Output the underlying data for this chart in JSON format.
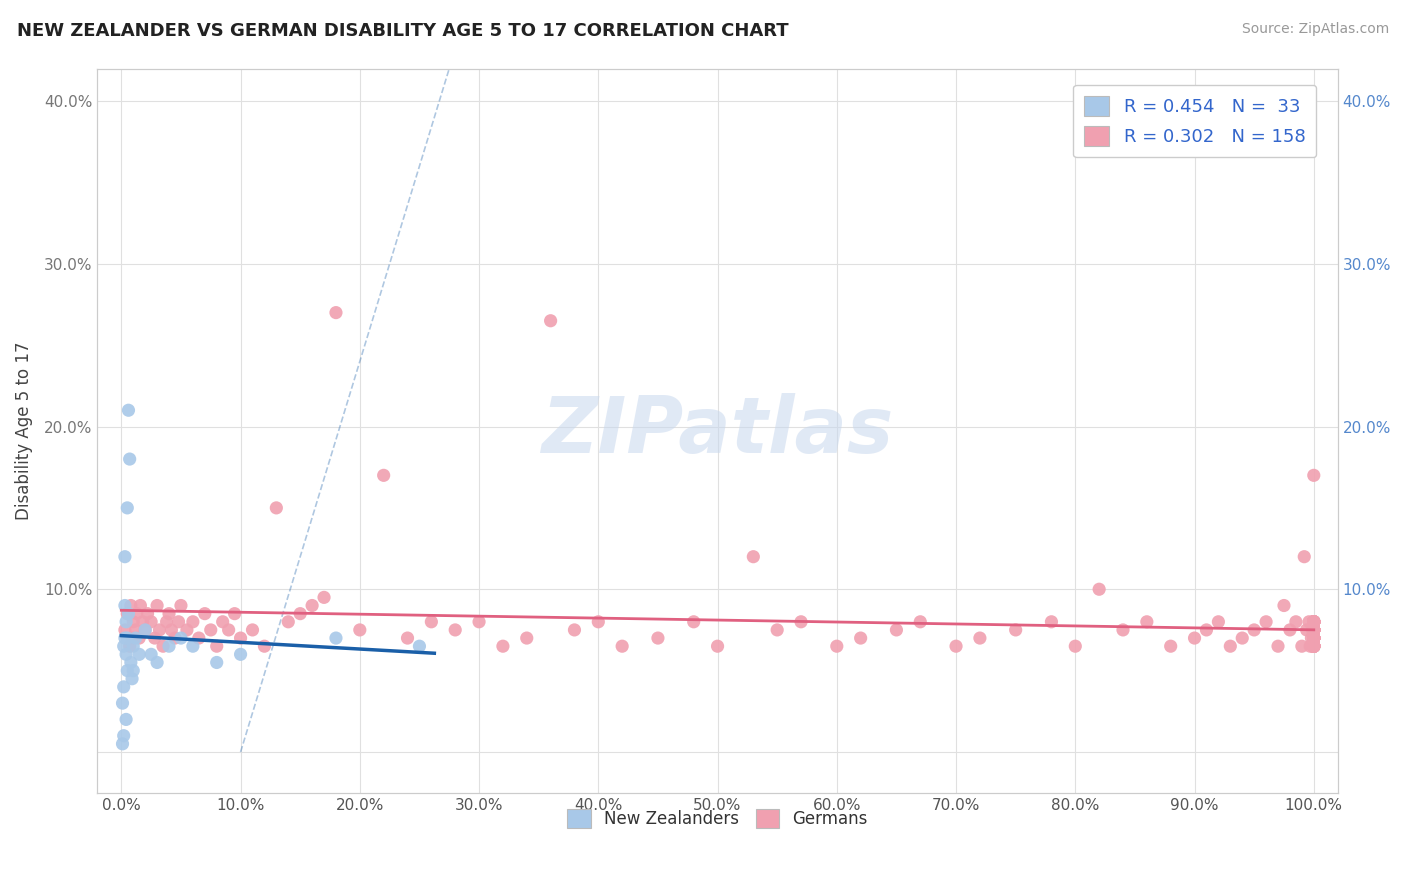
{
  "title": "NEW ZEALANDER VS GERMAN DISABILITY AGE 5 TO 17 CORRELATION CHART",
  "source": "Source: ZipAtlas.com",
  "ylabel": "Disability Age 5 to 17",
  "xlim": [
    -0.02,
    1.02
  ],
  "ylim": [
    -0.025,
    0.42
  ],
  "xticks": [
    0.0,
    0.1,
    0.2,
    0.3,
    0.4,
    0.5,
    0.6,
    0.7,
    0.8,
    0.9,
    1.0
  ],
  "xticklabels": [
    "0.0%",
    "10.0%",
    "20.0%",
    "30.0%",
    "40.0%",
    "50.0%",
    "60.0%",
    "70.0%",
    "80.0%",
    "90.0%",
    "100.0%"
  ],
  "yticks": [
    0.0,
    0.1,
    0.2,
    0.3,
    0.4
  ],
  "yticklabels": [
    "",
    "10.0%",
    "20.0%",
    "30.0%",
    "40.0%"
  ],
  "right_yticklabels": [
    "",
    "10.0%",
    "20.0%",
    "30.0%",
    "40.0%"
  ],
  "legend_R1": "0.454",
  "legend_N1": "33",
  "legend_R2": "0.302",
  "legend_N2": "158",
  "blue_scatter_color": "#a8c8e8",
  "blue_line_color": "#1a5fa8",
  "pink_scatter_color": "#f0a0b0",
  "pink_line_color": "#e06080",
  "legend_text_color": "#3366cc",
  "nz_x": [
    0.001,
    0.001,
    0.002,
    0.002,
    0.002,
    0.003,
    0.003,
    0.003,
    0.004,
    0.004,
    0.004,
    0.005,
    0.005,
    0.005,
    0.006,
    0.006,
    0.007,
    0.008,
    0.009,
    0.01,
    0.01,
    0.012,
    0.015,
    0.02,
    0.025,
    0.03,
    0.04,
    0.05,
    0.06,
    0.08,
    0.1,
    0.18,
    0.25
  ],
  "nz_y": [
    0.005,
    0.03,
    0.01,
    0.04,
    0.065,
    0.07,
    0.09,
    0.12,
    0.02,
    0.06,
    0.08,
    0.05,
    0.07,
    0.15,
    0.085,
    0.21,
    0.18,
    0.055,
    0.045,
    0.05,
    0.065,
    0.07,
    0.06,
    0.075,
    0.06,
    0.055,
    0.065,
    0.07,
    0.065,
    0.055,
    0.06,
    0.07,
    0.065
  ],
  "de_x": [
    0.003,
    0.005,
    0.007,
    0.008,
    0.009,
    0.01,
    0.012,
    0.013,
    0.015,
    0.016,
    0.018,
    0.02,
    0.022,
    0.025,
    0.028,
    0.03,
    0.032,
    0.035,
    0.038,
    0.04,
    0.042,
    0.045,
    0.048,
    0.05,
    0.055,
    0.06,
    0.065,
    0.07,
    0.075,
    0.08,
    0.085,
    0.09,
    0.095,
    0.1,
    0.11,
    0.12,
    0.13,
    0.14,
    0.15,
    0.16,
    0.17,
    0.18,
    0.2,
    0.22,
    0.24,
    0.26,
    0.28,
    0.3,
    0.32,
    0.34,
    0.36,
    0.38,
    0.4,
    0.42,
    0.45,
    0.48,
    0.5,
    0.53,
    0.55,
    0.57,
    0.6,
    0.62,
    0.65,
    0.67,
    0.7,
    0.72,
    0.75,
    0.78,
    0.8,
    0.82,
    0.84,
    0.86,
    0.88,
    0.9,
    0.91,
    0.92,
    0.93,
    0.94,
    0.95,
    0.96,
    0.97,
    0.975,
    0.98,
    0.985,
    0.99,
    0.992,
    0.994,
    0.996,
    0.997,
    0.998,
    0.999,
    1.0,
    1.0,
    1.0,
    1.0,
    1.0,
    1.0,
    1.0,
    1.0,
    1.0,
    1.0,
    1.0,
    1.0,
    1.0,
    1.0,
    1.0,
    1.0,
    1.0,
    1.0,
    1.0,
    1.0,
    1.0,
    1.0,
    1.0,
    1.0,
    1.0,
    1.0,
    1.0,
    1.0,
    1.0,
    1.0,
    1.0,
    1.0,
    1.0,
    1.0,
    1.0,
    1.0,
    1.0,
    1.0,
    1.0,
    1.0,
    1.0,
    1.0,
    1.0,
    1.0,
    1.0,
    1.0,
    1.0,
    1.0,
    1.0,
    1.0,
    1.0,
    1.0,
    1.0,
    1.0,
    1.0,
    1.0,
    1.0,
    1.0,
    1.0,
    1.0,
    1.0,
    1.0,
    1.0,
    1.0,
    1.0,
    1.0
  ],
  "de_y": [
    0.075,
    0.085,
    0.065,
    0.09,
    0.07,
    0.08,
    0.075,
    0.085,
    0.07,
    0.09,
    0.08,
    0.075,
    0.085,
    0.08,
    0.07,
    0.09,
    0.075,
    0.065,
    0.08,
    0.085,
    0.075,
    0.07,
    0.08,
    0.09,
    0.075,
    0.08,
    0.07,
    0.085,
    0.075,
    0.065,
    0.08,
    0.075,
    0.085,
    0.07,
    0.075,
    0.065,
    0.15,
    0.08,
    0.085,
    0.09,
    0.095,
    0.27,
    0.075,
    0.17,
    0.07,
    0.08,
    0.075,
    0.08,
    0.065,
    0.07,
    0.265,
    0.075,
    0.08,
    0.065,
    0.07,
    0.08,
    0.065,
    0.12,
    0.075,
    0.08,
    0.065,
    0.07,
    0.075,
    0.08,
    0.065,
    0.07,
    0.075,
    0.08,
    0.065,
    0.1,
    0.075,
    0.08,
    0.065,
    0.07,
    0.075,
    0.08,
    0.065,
    0.07,
    0.075,
    0.08,
    0.065,
    0.09,
    0.075,
    0.08,
    0.065,
    0.12,
    0.075,
    0.08,
    0.065,
    0.07,
    0.075,
    0.08,
    0.065,
    0.17,
    0.075,
    0.08,
    0.065,
    0.07,
    0.075,
    0.08,
    0.065,
    0.07,
    0.075,
    0.08,
    0.065,
    0.07,
    0.075,
    0.08,
    0.065,
    0.07,
    0.075,
    0.08,
    0.065,
    0.07,
    0.075,
    0.08,
    0.065,
    0.07,
    0.075,
    0.08,
    0.065,
    0.07,
    0.075,
    0.08,
    0.065,
    0.07,
    0.075,
    0.08,
    0.065,
    0.07,
    0.075,
    0.08,
    0.065,
    0.07,
    0.075,
    0.08,
    0.065,
    0.07,
    0.075,
    0.08,
    0.065,
    0.07,
    0.075,
    0.08,
    0.065,
    0.07,
    0.075,
    0.08,
    0.065,
    0.07,
    0.075,
    0.08,
    0.065,
    0.07,
    0.075,
    0.08,
    0.065,
    0.07,
    0.075,
    0.08,
    0.065
  ]
}
